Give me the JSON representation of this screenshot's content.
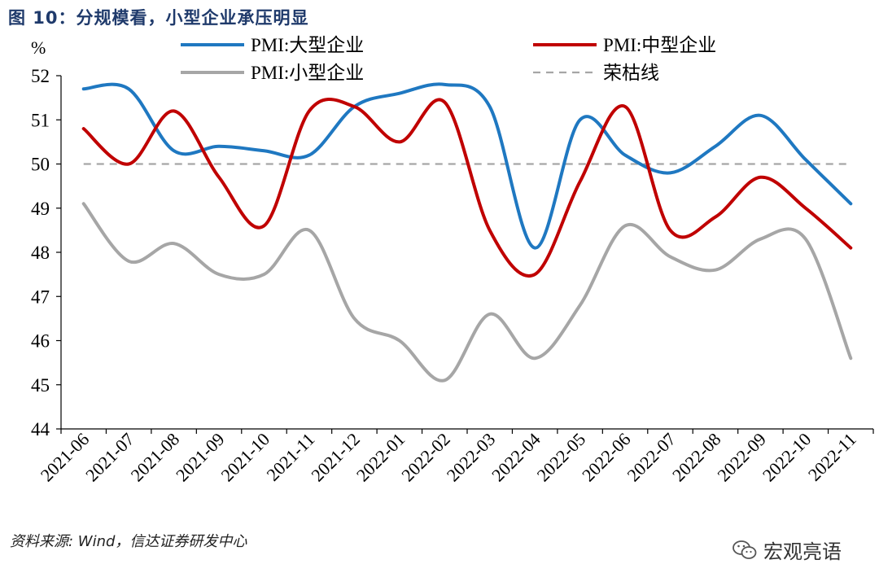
{
  "figure_title": "图 10：分规模看，小型企业承压明显",
  "source_note": "资料来源: Wind，信达证券研发中心",
  "watermark": "宏观亮语",
  "chart_data": {
    "type": "line",
    "ylabel": "%",
    "ylim": [
      44,
      52
    ],
    "yticks": [
      44,
      45,
      46,
      47,
      48,
      49,
      50,
      51,
      52
    ],
    "categories": [
      "2021-06",
      "2021-07",
      "2021-08",
      "2021-09",
      "2021-10",
      "2021-11",
      "2021-12",
      "2022-01",
      "2022-02",
      "2022-03",
      "2022-04",
      "2022-05",
      "2022-06",
      "2022-07",
      "2022-08",
      "2022-09",
      "2022-10",
      "2022-11"
    ],
    "series": [
      {
        "name": "PMI:大型企业",
        "color": "#1f78c1",
        "dashed": false,
        "values": [
          51.7,
          51.7,
          50.3,
          50.4,
          50.3,
          50.2,
          51.3,
          51.6,
          51.8,
          51.3,
          48.1,
          51.0,
          50.2,
          49.8,
          50.4,
          51.1,
          50.1,
          49.1
        ]
      },
      {
        "name": "PMI:中型企业",
        "color": "#c00000",
        "dashed": false,
        "values": [
          50.8,
          50.0,
          51.2,
          49.7,
          48.6,
          51.2,
          51.3,
          50.5,
          51.4,
          48.5,
          47.5,
          49.6,
          51.3,
          48.5,
          48.8,
          49.7,
          49.0,
          48.1
        ]
      },
      {
        "name": "PMI:小型企业",
        "color": "#a6a6a6",
        "dashed": false,
        "values": [
          49.1,
          47.8,
          48.2,
          47.5,
          47.5,
          48.5,
          46.5,
          46.0,
          45.1,
          46.6,
          45.6,
          46.8,
          48.6,
          47.9,
          47.6,
          48.3,
          48.3,
          45.6
        ]
      },
      {
        "name": "荣枯线",
        "color": "#a6a6a6",
        "dashed": true,
        "values": [
          50,
          50,
          50,
          50,
          50,
          50,
          50,
          50,
          50,
          50,
          50,
          50,
          50,
          50,
          50,
          50,
          50,
          50
        ]
      }
    ]
  }
}
